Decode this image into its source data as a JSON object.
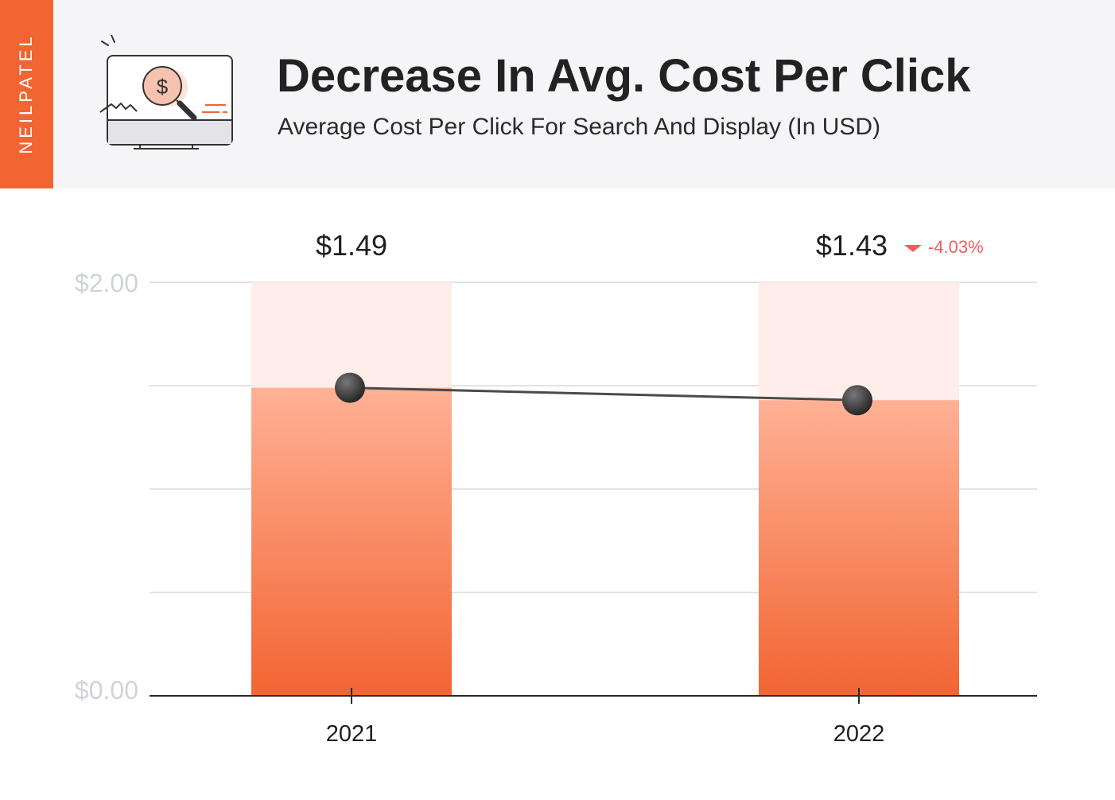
{
  "brand": "NEILPATEL",
  "header": {
    "title": "Decrease In Avg. Cost Per Click",
    "subtitle": "Average Cost Per Click For Search And Display (In USD)",
    "icon": "monitor-dollar-magnifier-icon"
  },
  "colors": {
    "brand": "#f26532",
    "bar_top": "#ffb195",
    "bar_bottom": "#f26532",
    "bar_bg": "#feede8",
    "line": "#4a4a4a",
    "change": "#f15d5d",
    "axis_label": "#d0d3d8"
  },
  "chart_data": {
    "type": "bar",
    "categories": [
      "2021",
      "2022"
    ],
    "values": [
      1.49,
      1.43
    ],
    "value_labels": [
      "$1.49",
      "$1.43"
    ],
    "change_label": "-4.03%",
    "ylim": [
      0,
      2
    ],
    "y_tick_labels": [
      "$2.00",
      "$0.00"
    ],
    "overlay": "line connecting bar tops",
    "grid": true,
    "xlabel": "",
    "ylabel": ""
  }
}
